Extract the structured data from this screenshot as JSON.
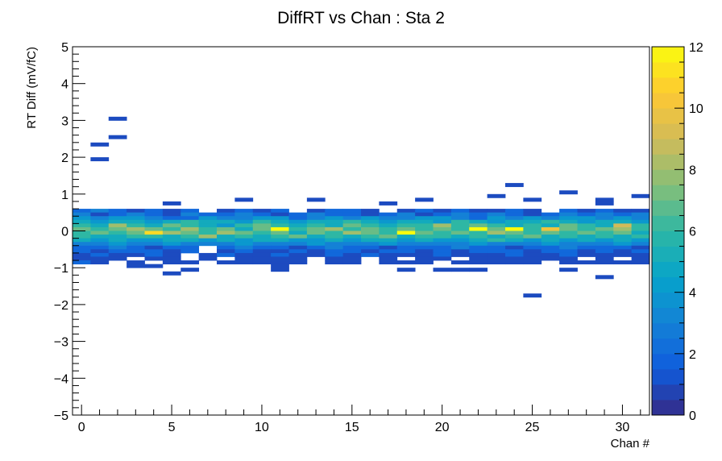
{
  "chart_data": {
    "type": "heatmap",
    "title": "DiffRT vs Chan : Sta 2",
    "xlabel": "Chan #",
    "ylabel": "RT Diff (mV/fC)",
    "xlim": [
      -0.5,
      31.5
    ],
    "ylim": [
      -5,
      5
    ],
    "x_bin_width": 1,
    "y_bin_width": 0.1,
    "x_ticks": [
      0,
      5,
      10,
      15,
      20,
      25,
      30
    ],
    "x_tick_labels": [
      "0",
      "5",
      "10",
      "15",
      "20",
      "25",
      "30"
    ],
    "y_ticks": [
      -5,
      -4,
      -3,
      -2,
      -1,
      0,
      1,
      2,
      3,
      4,
      5
    ],
    "y_tick_labels": [
      "−5",
      "−4",
      "−3",
      "−2",
      "−1",
      "0",
      "1",
      "2",
      "3",
      "4",
      "5"
    ],
    "z_range": [
      0,
      12
    ],
    "colorbar_ticks": [
      0,
      2,
      4,
      6,
      8,
      10,
      12
    ],
    "colorbar_tick_labels": [
      "0",
      "2",
      "4",
      "6",
      "8",
      "10",
      "12"
    ],
    "colormap": [
      "#352a87",
      "#0f5cdd",
      "#1481d6",
      "#06a4ca",
      "#2eb7a4",
      "#87bf77",
      "#d1bb59",
      "#fec832",
      "#f9fb0e"
    ],
    "grid": false,
    "legend": "none",
    "core_rows": [
      {
        "y": 0.55,
        "cells": [
          2,
          3,
          2,
          1,
          2,
          1,
          2,
          0,
          1,
          2,
          1,
          2,
          0,
          1,
          2,
          2,
          1,
          0,
          1,
          2,
          1,
          2,
          1,
          1,
          2,
          1,
          0,
          2,
          1,
          2,
          1,
          1
        ]
      },
      {
        "y": 0.45,
        "cells": [
          3,
          1,
          2,
          3,
          2,
          1,
          3,
          2,
          2,
          3,
          2,
          1,
          2,
          3,
          2,
          2,
          1,
          2,
          3,
          1,
          2,
          3,
          2,
          3,
          2,
          1,
          2,
          3,
          2,
          3,
          2,
          3
        ]
      },
      {
        "y": 0.35,
        "cells": [
          4,
          3,
          4,
          4,
          3,
          2,
          2,
          4,
          3,
          3,
          4,
          4,
          2,
          3,
          4,
          3,
          4,
          3,
          3,
          4,
          4,
          3,
          2,
          4,
          3,
          4,
          3,
          4,
          4,
          3,
          4,
          3
        ]
      },
      {
        "y": 0.25,
        "cells": [
          5,
          4,
          5,
          5,
          4,
          5,
          6,
          5,
          5,
          4,
          6,
          5,
          4,
          5,
          5,
          6,
          5,
          4,
          5,
          5,
          4,
          6,
          5,
          4,
          5,
          5,
          6,
          5,
          4,
          5,
          5,
          4
        ]
      },
      {
        "y": 0.15,
        "cells": [
          6,
          5,
          8,
          6,
          5,
          7,
          6,
          5,
          4,
          6,
          7,
          6,
          5,
          6,
          5,
          7,
          6,
          5,
          6,
          6,
          8,
          6,
          7,
          6,
          5,
          6,
          5,
          7,
          6,
          5,
          9,
          6
        ]
      },
      {
        "y": 0.05,
        "cells": [
          7,
          6,
          7,
          8,
          7,
          6,
          8,
          6,
          7,
          5,
          7,
          12,
          6,
          7,
          8,
          6,
          7,
          6,
          7,
          6,
          7,
          6,
          12,
          7,
          12,
          6,
          10,
          7,
          6,
          7,
          8,
          6
        ]
      },
      {
        "y": -0.05,
        "cells": [
          6,
          7,
          6,
          7,
          11,
          8,
          7,
          6,
          8,
          7,
          6,
          7,
          5,
          7,
          6,
          8,
          7,
          6,
          12,
          7,
          6,
          7,
          6,
          8,
          7,
          6,
          7,
          6,
          7,
          6,
          7,
          5
        ]
      },
      {
        "y": -0.15,
        "cells": [
          6,
          5,
          5,
          6,
          6,
          5,
          6,
          8,
          5,
          6,
          5,
          6,
          7,
          5,
          6,
          5,
          6,
          7,
          5,
          6,
          6,
          5,
          6,
          5,
          6,
          7,
          5,
          6,
          5,
          6,
          5,
          6
        ]
      },
      {
        "y": -0.25,
        "cells": [
          5,
          4,
          5,
          4,
          4,
          5,
          5,
          4,
          5,
          4,
          5,
          5,
          4,
          4,
          5,
          4,
          5,
          5,
          4,
          5,
          4,
          4,
          5,
          6,
          5,
          4,
          5,
          4,
          5,
          4,
          5,
          4
        ]
      },
      {
        "y": -0.35,
        "cells": [
          3,
          3,
          4,
          3,
          3,
          4,
          3,
          3,
          3,
          4,
          3,
          3,
          3,
          4,
          3,
          3,
          3,
          4,
          3,
          3,
          3,
          3,
          4,
          3,
          3,
          3,
          4,
          3,
          3,
          3,
          4,
          3
        ]
      },
      {
        "y": -0.45,
        "cells": [
          2,
          2,
          3,
          2,
          1,
          2,
          2,
          0,
          2,
          3,
          2,
          2,
          1,
          2,
          3,
          2,
          2,
          1,
          2,
          2,
          2,
          3,
          2,
          2,
          1,
          2,
          2,
          3,
          2,
          2,
          2,
          1
        ]
      },
      {
        "y": -0.55,
        "cells": [
          2,
          1,
          2,
          2,
          2,
          1,
          2,
          0,
          1,
          2,
          1,
          1,
          2,
          1,
          2,
          2,
          1,
          2,
          2,
          1,
          2,
          1,
          2,
          2,
          2,
          1,
          2,
          2,
          1,
          2,
          1,
          2
        ]
      },
      {
        "y": -0.65,
        "cells": [
          1,
          2,
          1,
          1,
          2,
          1,
          0,
          1,
          2,
          1,
          1,
          2,
          1,
          1,
          2,
          1,
          2,
          1,
          1,
          1,
          2,
          1,
          1,
          1,
          2,
          1,
          1,
          2,
          1,
          1,
          1,
          1
        ]
      },
      {
        "y": -0.75,
        "cells": [
          1,
          1,
          1,
          0,
          1,
          1,
          0,
          1,
          0,
          1,
          1,
          1,
          1,
          0,
          1,
          1,
          0,
          1,
          0,
          1,
          1,
          0,
          1,
          1,
          1,
          1,
          1,
          1,
          0,
          1,
          0,
          1
        ]
      },
      {
        "y": -0.85,
        "cells": [
          2,
          1,
          0,
          1,
          0,
          1,
          1,
          0,
          1,
          1,
          1,
          1,
          1,
          0,
          1,
          1,
          0,
          1,
          1,
          1,
          0,
          1,
          1,
          1,
          1,
          1,
          0,
          1,
          1,
          1,
          1,
          1
        ]
      }
    ],
    "extra_cells": [
      {
        "x": 1,
        "y": 2.35,
        "v": 1
      },
      {
        "x": 1,
        "y": 1.95,
        "v": 1
      },
      {
        "x": 2,
        "y": 3.05,
        "v": 1
      },
      {
        "x": 2,
        "y": 2.55,
        "v": 1
      },
      {
        "x": 5,
        "y": 0.75,
        "v": 1
      },
      {
        "x": 9,
        "y": 0.85,
        "v": 1
      },
      {
        "x": 13,
        "y": 0.85,
        "v": 1
      },
      {
        "x": 17,
        "y": 0.75,
        "v": 1
      },
      {
        "x": 19,
        "y": 0.85,
        "v": 1
      },
      {
        "x": 23,
        "y": 0.95,
        "v": 1
      },
      {
        "x": 24,
        "y": 1.25,
        "v": 1
      },
      {
        "x": 25,
        "y": 0.85,
        "v": 1
      },
      {
        "x": 27,
        "y": 1.05,
        "v": 1
      },
      {
        "x": 29,
        "y": 0.85,
        "v": 1
      },
      {
        "x": 31,
        "y": 0.95,
        "v": 1
      },
      {
        "x": 29,
        "y": 0.75,
        "v": 1
      },
      {
        "x": 3,
        "y": -0.95,
        "v": 1
      },
      {
        "x": 4,
        "y": -0.95,
        "v": 1
      },
      {
        "x": 5,
        "y": -1.15,
        "v": 1
      },
      {
        "x": 6,
        "y": -1.05,
        "v": 1
      },
      {
        "x": 11,
        "y": -0.95,
        "v": 1
      },
      {
        "x": 11,
        "y": -1.05,
        "v": 1
      },
      {
        "x": 18,
        "y": -1.05,
        "v": 1
      },
      {
        "x": 20,
        "y": -1.05,
        "v": 1
      },
      {
        "x": 21,
        "y": -1.05,
        "v": 1
      },
      {
        "x": 22,
        "y": -1.05,
        "v": 1
      },
      {
        "x": 27,
        "y": -1.05,
        "v": 1
      },
      {
        "x": 29,
        "y": -1.25,
        "v": 1
      },
      {
        "x": 25,
        "y": -1.75,
        "v": 1
      }
    ]
  }
}
